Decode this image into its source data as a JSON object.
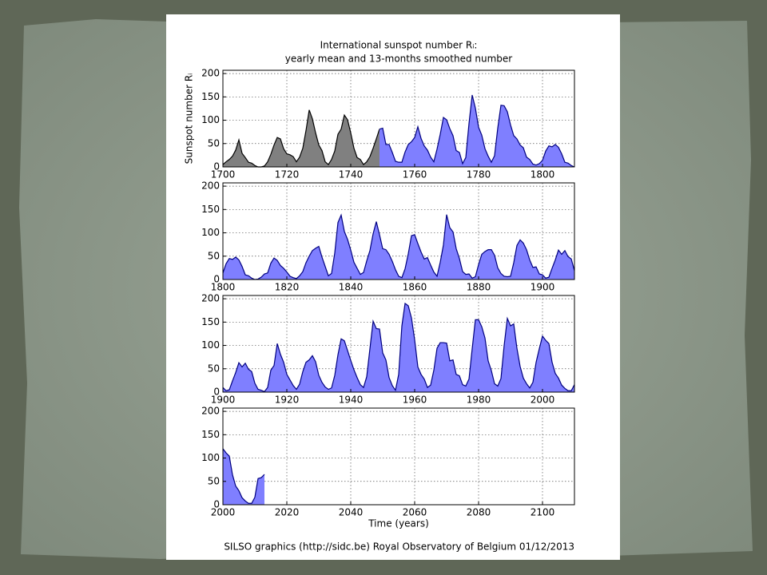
{
  "chart_data": [
    {
      "type": "area",
      "title": "International sunspot number Rᵢ:",
      "subtitle": "yearly mean and 13-months smoothed number",
      "ylabel": "Sunspot number Rᵢ",
      "xlim": [
        1700,
        1810
      ],
      "xticks": [
        1700,
        1720,
        1740,
        1760,
        1780,
        1800
      ],
      "ylim": [
        0,
        207
      ],
      "yticks": [
        0,
        50,
        100,
        150,
        200
      ],
      "grid": true,
      "series": [
        {
          "color": "#808080",
          "x": [
            1700,
            1701,
            1702,
            1703,
            1704,
            1705,
            1706,
            1707,
            1708,
            1709,
            1710,
            1711,
            1712,
            1713,
            1714,
            1715,
            1716,
            1717,
            1718,
            1719,
            1720,
            1721,
            1722,
            1723,
            1724,
            1725,
            1726,
            1727,
            1728,
            1729,
            1730,
            1731,
            1732,
            1733,
            1734,
            1735,
            1736,
            1737,
            1738,
            1739,
            1740,
            1741,
            1742,
            1743,
            1744,
            1745,
            1746,
            1747,
            1748,
            1749
          ],
          "values": [
            5,
            11,
            16,
            23,
            36,
            58,
            29,
            20,
            10,
            8,
            3,
            0,
            0,
            2,
            11,
            27,
            47,
            63,
            60,
            39,
            28,
            26,
            22,
            11,
            21,
            40,
            78,
            122,
            103,
            73,
            47,
            35,
            11,
            5,
            16,
            34,
            70,
            81,
            111,
            101,
            73,
            40,
            20,
            16,
            5,
            11,
            22,
            40,
            60,
            81
          ]
        },
        {
          "color": "#7f7fff",
          "x": [
            1749,
            1750,
            1751,
            1752,
            1753,
            1754,
            1755,
            1756,
            1757,
            1758,
            1759,
            1760,
            1761,
            1762,
            1763,
            1764,
            1765,
            1766,
            1767,
            1768,
            1769,
            1770,
            1771,
            1772,
            1773,
            1774,
            1775,
            1776,
            1777,
            1778,
            1779,
            1780,
            1781,
            1782,
            1783,
            1784,
            1785,
            1786,
            1787,
            1788,
            1789,
            1790,
            1791,
            1792,
            1793,
            1794,
            1795,
            1796,
            1797,
            1798,
            1799,
            1800,
            1801,
            1802,
            1803,
            1804,
            1805,
            1806,
            1807,
            1808,
            1809,
            1810
          ],
          "values": [
            81,
            83,
            48,
            48,
            31,
            12,
            10,
            10,
            32,
            48,
            54,
            63,
            86,
            61,
            45,
            36,
            21,
            11,
            38,
            70,
            106,
            101,
            82,
            67,
            35,
            31,
            7,
            20,
            93,
            154,
            126,
            85,
            68,
            39,
            23,
            10,
            24,
            83,
            132,
            131,
            118,
            90,
            67,
            60,
            47,
            41,
            21,
            16,
            6,
            4,
            7,
            14,
            34,
            45,
            43,
            48,
            42,
            28,
            10,
            8,
            3,
            0
          ]
        }
      ]
    },
    {
      "type": "area",
      "xlim": [
        1800,
        1910
      ],
      "xticks": [
        1800,
        1820,
        1840,
        1860,
        1880,
        1900
      ],
      "ylim": [
        0,
        207
      ],
      "yticks": [
        0,
        50,
        100,
        150,
        200
      ],
      "grid": true,
      "series": [
        {
          "color": "#7f7fff",
          "x": [
            1800,
            1801,
            1802,
            1803,
            1804,
            1805,
            1806,
            1807,
            1808,
            1809,
            1810,
            1811,
            1812,
            1813,
            1814,
            1815,
            1816,
            1817,
            1818,
            1819,
            1820,
            1821,
            1822,
            1823,
            1824,
            1825,
            1826,
            1827,
            1828,
            1829,
            1830,
            1831,
            1832,
            1833,
            1834,
            1835,
            1836,
            1837,
            1838,
            1839,
            1840,
            1841,
            1842,
            1843,
            1844,
            1845,
            1846,
            1847,
            1848,
            1849,
            1850,
            1851,
            1852,
            1853,
            1854,
            1855,
            1856,
            1857,
            1858,
            1859,
            1860,
            1861,
            1862,
            1863,
            1864,
            1865,
            1866,
            1867,
            1868,
            1869,
            1870,
            1871,
            1872,
            1873,
            1874,
            1875,
            1876,
            1877,
            1878,
            1879,
            1880,
            1881,
            1882,
            1883,
            1884,
            1885,
            1886,
            1887,
            1888,
            1889,
            1890,
            1891,
            1892,
            1893,
            1894,
            1895,
            1896,
            1897,
            1898,
            1899,
            1900,
            1901,
            1902,
            1903,
            1904,
            1905,
            1906,
            1907,
            1908,
            1909,
            1910
          ],
          "values": [
            14,
            34,
            45,
            43,
            48,
            42,
            28,
            10,
            8,
            3,
            0,
            1,
            5,
            12,
            14,
            35,
            46,
            41,
            30,
            24,
            16,
            7,
            4,
            2,
            8,
            17,
            36,
            50,
            62,
            67,
            71,
            48,
            28,
            8,
            13,
            57,
            122,
            138,
            103,
            86,
            63,
            37,
            24,
            11,
            15,
            40,
            62,
            98,
            124,
            96,
            66,
            64,
            54,
            39,
            21,
            7,
            4,
            23,
            55,
            94,
            96,
            77,
            59,
            44,
            47,
            31,
            16,
            7,
            37,
            74,
            139,
            111,
            102,
            66,
            45,
            17,
            11,
            12,
            3,
            6,
            32,
            54,
            60,
            64,
            64,
            52,
            25,
            13,
            7,
            6,
            7,
            36,
            73,
            85,
            78,
            64,
            42,
            26,
            27,
            12,
            10,
            3,
            5,
            24,
            42,
            63,
            54,
            62,
            49,
            44,
            19
          ]
        }
      ]
    },
    {
      "type": "area",
      "xlim": [
        1900,
        2010
      ],
      "xticks": [
        1900,
        1920,
        1940,
        1960,
        1980,
        2000
      ],
      "ylim": [
        0,
        207
      ],
      "yticks": [
        0,
        50,
        100,
        150,
        200
      ],
      "grid": true,
      "series": [
        {
          "color": "#7f7fff",
          "x": [
            1900,
            1901,
            1902,
            1903,
            1904,
            1905,
            1906,
            1907,
            1908,
            1909,
            1910,
            1911,
            1912,
            1913,
            1914,
            1915,
            1916,
            1917,
            1918,
            1919,
            1920,
            1921,
            1922,
            1923,
            1924,
            1925,
            1926,
            1927,
            1928,
            1929,
            1930,
            1931,
            1932,
            1933,
            1934,
            1935,
            1936,
            1937,
            1938,
            1939,
            1940,
            1941,
            1942,
            1943,
            1944,
            1945,
            1946,
            1947,
            1948,
            1949,
            1950,
            1951,
            1952,
            1953,
            1954,
            1955,
            1956,
            1957,
            1958,
            1959,
            1960,
            1961,
            1962,
            1963,
            1964,
            1965,
            1966,
            1967,
            1968,
            1969,
            1970,
            1971,
            1972,
            1973,
            1974,
            1975,
            1976,
            1977,
            1978,
            1979,
            1980,
            1981,
            1982,
            1983,
            1984,
            1985,
            1986,
            1987,
            1988,
            1989,
            1990,
            1991,
            1992,
            1993,
            1994,
            1995,
            1996,
            1997,
            1998,
            1999,
            2000,
            2001,
            2002,
            2003,
            2004,
            2005,
            2006,
            2007,
            2008,
            2009,
            2010
          ],
          "values": [
            10,
            3,
            5,
            24,
            42,
            63,
            54,
            62,
            49,
            44,
            19,
            6,
            4,
            1,
            10,
            47,
            57,
            104,
            81,
            64,
            38,
            26,
            14,
            6,
            17,
            44,
            64,
            69,
            78,
            65,
            36,
            21,
            11,
            6,
            9,
            36,
            80,
            114,
            110,
            89,
            68,
            48,
            31,
            16,
            10,
            33,
            93,
            152,
            136,
            135,
            84,
            69,
            31,
            14,
            4,
            38,
            142,
            190,
            185,
            159,
            112,
            54,
            38,
            28,
            10,
            15,
            47,
            94,
            106,
            106,
            105,
            67,
            69,
            38,
            35,
            16,
            13,
            28,
            93,
            155,
            155,
            140,
            116,
            67,
            46,
            18,
            13,
            29,
            100,
            158,
            142,
            146,
            94,
            55,
            30,
            18,
            9,
            21,
            64,
            93,
            120,
            111,
            104,
            64,
            40,
            30,
            15,
            8,
            3,
            3,
            16
          ]
        }
      ]
    },
    {
      "type": "area",
      "xlabel": "Time (years)",
      "footer": "SILSO graphics (http://sidc.be)  Royal Observatory of Belgium  01/12/2013",
      "xlim": [
        2000,
        2110
      ],
      "xticks": [
        2000,
        2020,
        2040,
        2060,
        2080,
        2100
      ],
      "ylim": [
        0,
        207
      ],
      "yticks": [
        0,
        50,
        100,
        150,
        200
      ],
      "grid": true,
      "series": [
        {
          "color": "#7f7fff",
          "x": [
            2000,
            2001,
            2002,
            2003,
            2004,
            2005,
            2006,
            2007,
            2008,
            2009,
            2010,
            2011,
            2012,
            2013
          ],
          "values": [
            120,
            111,
            104,
            64,
            40,
            30,
            15,
            8,
            3,
            3,
            16,
            56,
            58,
            65
          ]
        }
      ]
    }
  ]
}
